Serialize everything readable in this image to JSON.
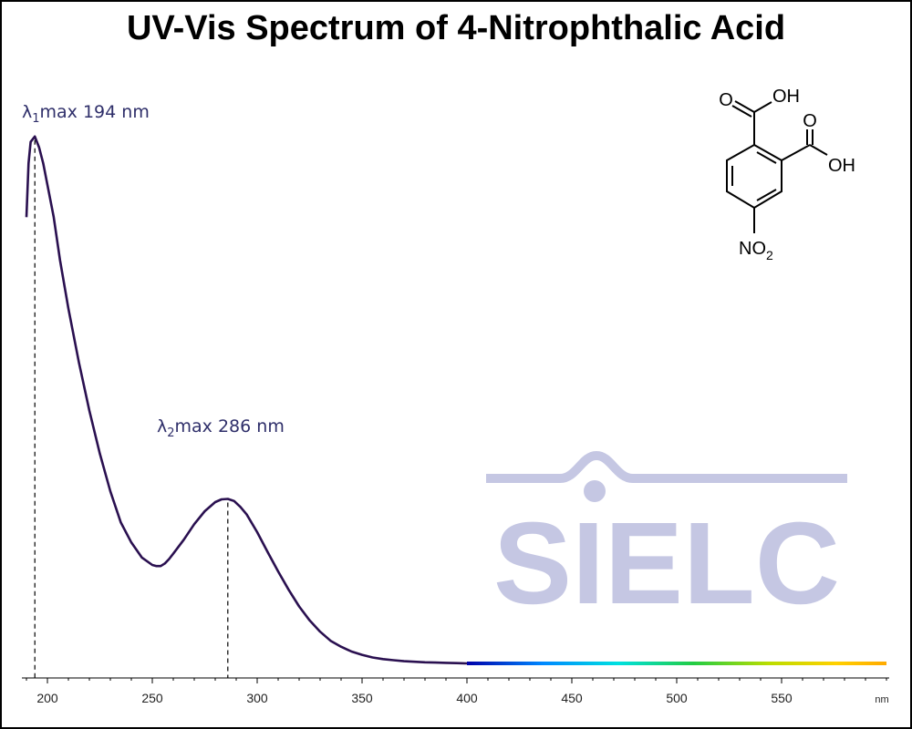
{
  "title": "UV-Vis Spectrum of 4-Nitrophthalic Acid",
  "chart_data": {
    "type": "line",
    "title": "UV-Vis Spectrum of 4-Nitrophthalic Acid",
    "xlabel": "",
    "ylabel": "",
    "x_unit": "nm",
    "xlim": [
      190,
      600
    ],
    "ylim": [
      0,
      1
    ],
    "x_ticks": [
      200,
      250,
      300,
      350,
      400,
      450,
      500,
      550
    ],
    "grid": false,
    "legend": "none",
    "series": [
      {
        "x": [
          190,
          191,
          192,
          194,
          196,
          198,
          200,
          203,
          206,
          210,
          215,
          220,
          225,
          230,
          235,
          240,
          245,
          250,
          252,
          254,
          256,
          258,
          260,
          265,
          270,
          275,
          280,
          283,
          286,
          289,
          292,
          295,
          300,
          305,
          310,
          315,
          320,
          325,
          330,
          335,
          340,
          345,
          350,
          355,
          360,
          365,
          370,
          375,
          380,
          385,
          390,
          395,
          400,
          450,
          500,
          550,
          600
        ],
        "y": [
          0.83,
          0.93,
          0.97,
          0.98,
          0.96,
          0.93,
          0.89,
          0.83,
          0.75,
          0.66,
          0.56,
          0.47,
          0.39,
          0.32,
          0.262,
          0.225,
          0.197,
          0.183,
          0.181,
          0.181,
          0.186,
          0.194,
          0.204,
          0.23,
          0.259,
          0.283,
          0.3,
          0.305,
          0.306,
          0.302,
          0.291,
          0.277,
          0.244,
          0.207,
          0.171,
          0.137,
          0.106,
          0.08,
          0.059,
          0.042,
          0.031,
          0.022,
          0.016,
          0.011,
          0.008,
          0.006,
          0.004,
          0.003,
          0.002,
          0.0015,
          0.001,
          0.0005,
          0.0,
          0.0,
          0.0,
          0.0,
          0.0
        ]
      }
    ],
    "annotations": [
      {
        "prefix": "λ",
        "sub": "1",
        "text": "max  194 nm",
        "x": 194
      },
      {
        "prefix": "λ",
        "sub": "2",
        "text": "max  286 nm",
        "x": 286
      }
    ],
    "line_color": "#2a1050",
    "spectrum_colors": [
      "#0000aa",
      "#0088ff",
      "#00e0e0",
      "#22cc44",
      "#bbdd00",
      "#ffd000",
      "#ffaa00"
    ]
  },
  "molecule": {
    "labels": {
      "o_top": "O",
      "oh_top": "OH",
      "o_right": "O",
      "oh_right": "OH",
      "no2_main": "NO",
      "no2_sub": "2"
    }
  },
  "watermark": {
    "text": "SIELC",
    "color": "#c5c7e3"
  }
}
